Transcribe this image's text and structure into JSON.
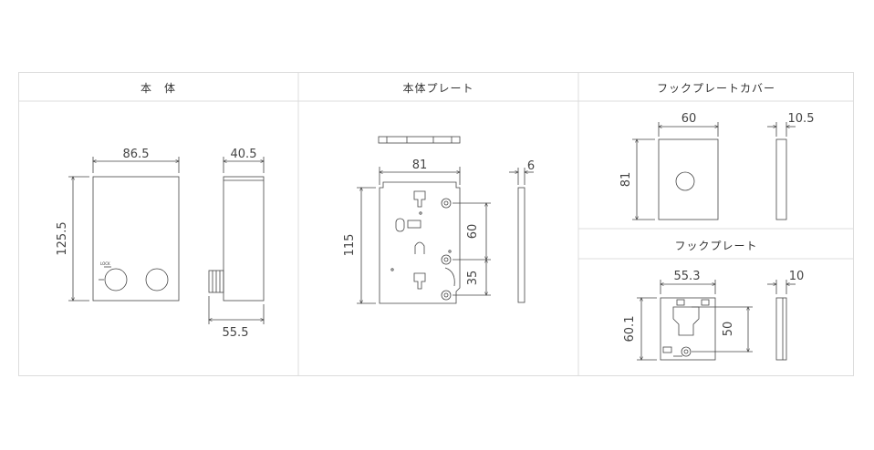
{
  "panels": {
    "body": {
      "title": "本　体"
    },
    "body_plate": {
      "title": "本体プレート"
    },
    "hook_plate_cover": {
      "title": "フックプレートカバー"
    },
    "hook_plate": {
      "title": "フックプレート"
    }
  },
  "dimensions": {
    "body_width": "86.5",
    "body_height": "125.5",
    "body_depth": "40.5",
    "body_depth_total": "55.5",
    "plate_width": "81",
    "plate_height": "115",
    "plate_thickness": "6",
    "plate_hole_spacing": "60",
    "plate_hole_offset": "35",
    "cover_width": "60",
    "cover_height": "81",
    "cover_thickness": "10.5",
    "hook_width": "55.3",
    "hook_height": "60.1",
    "hook_thickness": "10",
    "hook_hole_height": "50"
  },
  "labels": {
    "lock": "LOCK"
  },
  "colors": {
    "line": "#444444",
    "border": "#dcdcdc"
  }
}
